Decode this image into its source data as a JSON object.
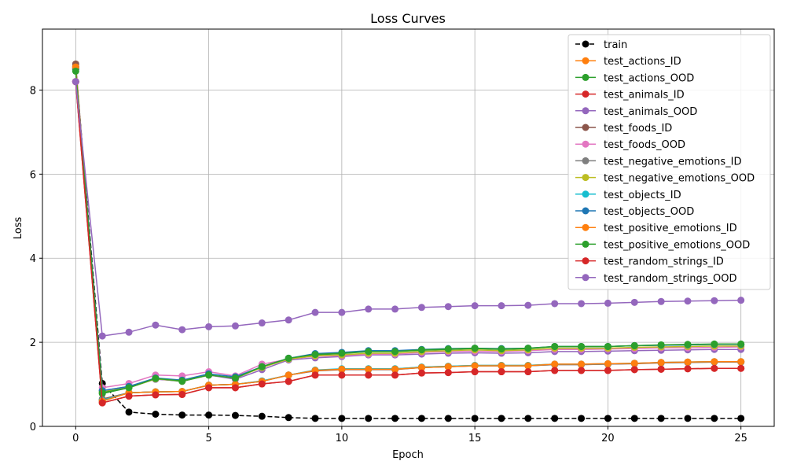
{
  "chart_data": {
    "type": "line",
    "title": "Loss Curves",
    "xlabel": "Epoch",
    "ylabel": "Loss",
    "xlim": [
      -1.25,
      26.25
    ],
    "ylim": [
      0,
      9.45
    ],
    "xticks": [
      0,
      5,
      10,
      15,
      20,
      25
    ],
    "yticks": [
      0,
      2,
      4,
      6,
      8
    ],
    "grid": true,
    "legend_position": "top-right",
    "x": [
      0,
      1,
      2,
      3,
      4,
      5,
      6,
      7,
      8,
      9,
      10,
      11,
      12,
      13,
      14,
      15,
      16,
      17,
      18,
      19,
      20,
      21,
      22,
      23,
      24,
      25
    ],
    "series": [
      {
        "name": "train",
        "color": "#000000",
        "dashed": true,
        "values": [
          8.55,
          1.02,
          0.34,
          0.29,
          0.27,
          0.27,
          0.26,
          0.24,
          0.21,
          0.19,
          0.19,
          0.19,
          0.19,
          0.19,
          0.19,
          0.19,
          0.19,
          0.19,
          0.19,
          0.19,
          0.19,
          0.19,
          0.19,
          0.19,
          0.19,
          0.19
        ]
      },
      {
        "name": "test_actions_ID",
        "color": "#ff7f0e",
        "values": [
          8.5,
          0.6,
          0.8,
          0.82,
          0.83,
          0.98,
          1.0,
          1.08,
          1.22,
          1.33,
          1.36,
          1.37,
          1.37,
          1.41,
          1.43,
          1.45,
          1.45,
          1.45,
          1.48,
          1.48,
          1.49,
          1.5,
          1.52,
          1.53,
          1.54,
          1.54
        ]
      },
      {
        "name": "test_actions_OOD",
        "color": "#2ca02c",
        "values": [
          8.5,
          0.78,
          0.92,
          1.13,
          1.07,
          1.22,
          1.14,
          1.42,
          1.62,
          1.7,
          1.73,
          1.78,
          1.78,
          1.81,
          1.83,
          1.85,
          1.83,
          1.85,
          1.9,
          1.9,
          1.9,
          1.92,
          1.93,
          1.94,
          1.95,
          1.95
        ]
      },
      {
        "name": "test_animals_ID",
        "color": "#d62728",
        "values": [
          8.2,
          0.56,
          0.72,
          0.75,
          0.76,
          0.92,
          0.92,
          1.01,
          1.07,
          1.22,
          1.22,
          1.22,
          1.22,
          1.27,
          1.28,
          1.3,
          1.3,
          1.3,
          1.33,
          1.33,
          1.33,
          1.35,
          1.36,
          1.37,
          1.38,
          1.38
        ]
      },
      {
        "name": "test_animals_OOD",
        "color": "#9467bd",
        "values": [
          8.2,
          0.85,
          0.95,
          1.12,
          1.08,
          1.22,
          1.12,
          1.35,
          1.58,
          1.63,
          1.66,
          1.7,
          1.7,
          1.72,
          1.74,
          1.75,
          1.74,
          1.75,
          1.78,
          1.78,
          1.79,
          1.8,
          1.81,
          1.82,
          1.83,
          1.83
        ]
      },
      {
        "name": "test_foods_ID",
        "color": "#8c564b",
        "values": [
          8.62,
          0.65,
          0.8,
          0.82,
          0.83,
          0.98,
          1.0,
          1.07,
          1.22,
          1.32,
          1.35,
          1.35,
          1.35,
          1.4,
          1.42,
          1.44,
          1.44,
          1.44,
          1.47,
          1.47,
          1.48,
          1.49,
          1.51,
          1.52,
          1.53,
          1.53
        ]
      },
      {
        "name": "test_foods_OOD",
        "color": "#e377c2",
        "values": [
          8.2,
          0.92,
          1.02,
          1.22,
          1.2,
          1.3,
          1.2,
          1.48,
          1.6,
          1.67,
          1.68,
          1.72,
          1.72,
          1.76,
          1.78,
          1.79,
          1.78,
          1.8,
          1.83,
          1.83,
          1.84,
          1.85,
          1.87,
          1.87,
          1.88,
          1.89
        ]
      },
      {
        "name": "test_negative_emotions_ID",
        "color": "#7f7f7f",
        "values": [
          8.5,
          0.63,
          0.8,
          0.82,
          0.83,
          0.98,
          1.0,
          1.07,
          1.22,
          1.33,
          1.36,
          1.36,
          1.36,
          1.4,
          1.42,
          1.44,
          1.44,
          1.44,
          1.47,
          1.47,
          1.48,
          1.5,
          1.51,
          1.52,
          1.53,
          1.53
        ]
      },
      {
        "name": "test_negative_emotions_OOD",
        "color": "#bcbd22",
        "values": [
          8.5,
          0.82,
          0.92,
          1.13,
          1.08,
          1.22,
          1.15,
          1.4,
          1.6,
          1.68,
          1.7,
          1.74,
          1.74,
          1.78,
          1.8,
          1.82,
          1.8,
          1.82,
          1.86,
          1.86,
          1.86,
          1.88,
          1.89,
          1.9,
          1.91,
          1.91
        ]
      },
      {
        "name": "test_objects_ID",
        "color": "#17becf",
        "values": [
          8.5,
          0.62,
          0.8,
          0.82,
          0.83,
          0.98,
          1.0,
          1.08,
          1.22,
          1.34,
          1.37,
          1.37,
          1.37,
          1.41,
          1.43,
          1.45,
          1.45,
          1.45,
          1.48,
          1.48,
          1.49,
          1.5,
          1.52,
          1.53,
          1.54,
          1.54
        ]
      },
      {
        "name": "test_objects_OOD",
        "color": "#1f77b4",
        "values": [
          8.5,
          0.85,
          0.95,
          1.15,
          1.1,
          1.25,
          1.18,
          1.42,
          1.62,
          1.73,
          1.76,
          1.8,
          1.8,
          1.83,
          1.85,
          1.86,
          1.85,
          1.86,
          1.9,
          1.9,
          1.9,
          1.92,
          1.93,
          1.94,
          1.95,
          1.95
        ]
      },
      {
        "name": "test_positive_emotions_ID",
        "color": "#ff7f0e",
        "values": [
          8.55,
          0.6,
          0.8,
          0.82,
          0.83,
          0.98,
          1.0,
          1.07,
          1.22,
          1.33,
          1.36,
          1.36,
          1.36,
          1.4,
          1.42,
          1.44,
          1.44,
          1.44,
          1.48,
          1.48,
          1.49,
          1.5,
          1.52,
          1.53,
          1.54,
          1.54
        ]
      },
      {
        "name": "test_positive_emotions_OOD",
        "color": "#2ca02c",
        "values": [
          8.45,
          0.8,
          0.92,
          1.14,
          1.08,
          1.22,
          1.15,
          1.42,
          1.62,
          1.71,
          1.74,
          1.78,
          1.78,
          1.82,
          1.84,
          1.86,
          1.84,
          1.86,
          1.9,
          1.9,
          1.9,
          1.92,
          1.94,
          1.95,
          1.96,
          1.96
        ]
      },
      {
        "name": "test_random_strings_ID",
        "color": "#d62728",
        "values": [
          8.2,
          0.56,
          0.72,
          0.75,
          0.76,
          0.92,
          0.92,
          1.01,
          1.07,
          1.22,
          1.22,
          1.22,
          1.22,
          1.27,
          1.28,
          1.3,
          1.3,
          1.3,
          1.33,
          1.33,
          1.33,
          1.35,
          1.36,
          1.37,
          1.38,
          1.38
        ]
      },
      {
        "name": "test_random_strings_OOD",
        "color": "#9467bd",
        "values": [
          8.2,
          2.15,
          2.24,
          2.41,
          2.3,
          2.37,
          2.39,
          2.46,
          2.53,
          2.71,
          2.71,
          2.79,
          2.79,
          2.83,
          2.85,
          2.87,
          2.87,
          2.88,
          2.92,
          2.92,
          2.93,
          2.95,
          2.97,
          2.98,
          2.99,
          3.0
        ]
      }
    ]
  }
}
